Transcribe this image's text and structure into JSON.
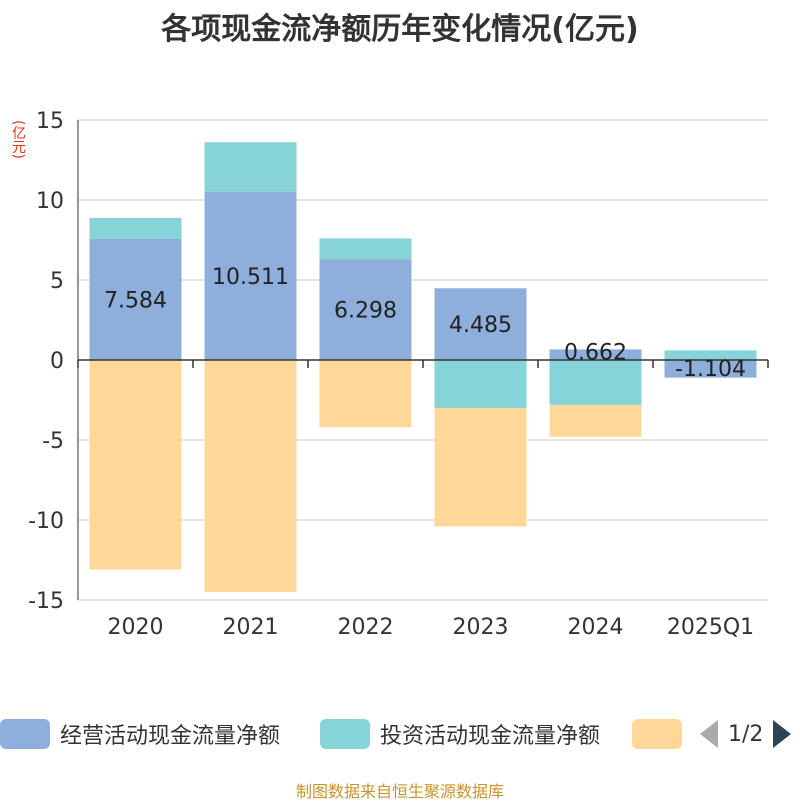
{
  "chart_data": {
    "type": "bar",
    "stacked": true,
    "title": "各项现金流净额历年变化情况(亿元)",
    "unit_label": "(亿元)",
    "categories": [
      "2020",
      "2021",
      "2022",
      "2023",
      "2024",
      "2025Q1"
    ],
    "ylim": [
      -15,
      15
    ],
    "yticks": [
      15,
      10,
      5,
      0,
      -5,
      -10,
      -15
    ],
    "grid": true,
    "legend_position": "bottom",
    "series": [
      {
        "name": "经营活动现金流量净额",
        "color": "#8eaedb",
        "values": [
          7.584,
          10.511,
          6.298,
          4.485,
          0.662,
          -1.104
        ],
        "show_labels": true
      },
      {
        "name": "投资活动现金流量净额",
        "color": "#86d4d8",
        "values": [
          1.3,
          3.1,
          1.3,
          -3.0,
          -2.8,
          0.6
        ],
        "show_labels": false
      },
      {
        "name": "",
        "color": "#ffd899",
        "values": [
          -13.1,
          -14.5,
          -4.2,
          -7.4,
          -2.0,
          0
        ],
        "show_labels": false
      }
    ]
  },
  "legend": {
    "items": [
      {
        "label": "经营活动现金流量净额",
        "color": "#8eaedb"
      },
      {
        "label": "投资活动现金流量净额",
        "color": "#86d4d8"
      },
      {
        "label": "",
        "color": "#ffd899"
      }
    ],
    "page_indicator": "1/2"
  },
  "footer": "制图数据来自恒生聚源数据库"
}
